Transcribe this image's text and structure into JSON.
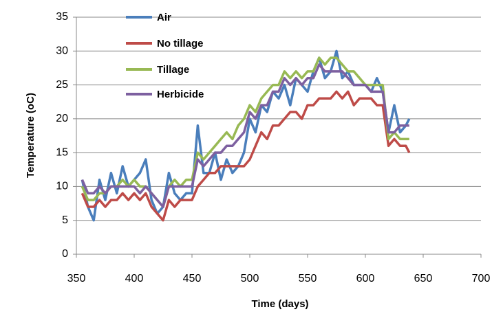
{
  "chart_data": {
    "type": "line",
    "x_label": "Time (days)",
    "y_label": "Temperature (oC)",
    "x": [
      355,
      360,
      365,
      370,
      375,
      380,
      385,
      390,
      395,
      400,
      405,
      410,
      415,
      420,
      425,
      430,
      435,
      440,
      445,
      450,
      455,
      460,
      465,
      470,
      475,
      480,
      485,
      490,
      495,
      500,
      505,
      510,
      515,
      520,
      525,
      530,
      535,
      540,
      545,
      550,
      555,
      560,
      565,
      570,
      575,
      580,
      585,
      590,
      595,
      600,
      605,
      610,
      615,
      620,
      625,
      630,
      635,
      638
    ],
    "series": [
      {
        "name": "Air",
        "color": "#4a7ebb",
        "values": [
          11,
          7,
          5,
          11,
          8,
          12,
          9,
          13,
          10,
          11,
          12,
          14,
          8,
          6,
          7,
          12,
          9,
          8,
          9,
          9,
          19,
          12,
          12,
          15,
          11,
          14,
          12,
          13,
          15,
          20,
          18,
          22,
          21,
          24,
          23,
          25,
          22,
          26,
          25,
          24,
          27,
          29,
          26,
          27,
          30,
          26,
          27,
          25,
          25,
          25,
          24,
          26,
          24,
          18,
          22,
          18,
          19,
          20
        ]
      },
      {
        "name": "No tillage",
        "color": "#be4b48",
        "values": [
          9,
          7,
          7,
          8,
          7,
          8,
          8,
          9,
          8,
          9,
          8,
          9,
          7,
          6,
          5,
          8,
          7,
          8,
          8,
          8,
          10,
          11,
          12,
          12,
          13,
          13,
          13,
          13,
          13,
          14,
          16,
          18,
          17,
          19,
          19,
          20,
          21,
          21,
          20,
          22,
          22,
          23,
          23,
          23,
          24,
          23,
          24,
          22,
          23,
          23,
          23,
          22,
          22,
          16,
          17,
          16,
          16,
          15
        ]
      },
      {
        "name": "Tillage",
        "color": "#98b954",
        "values": [
          10,
          8,
          8,
          9,
          9,
          10,
          10,
          11,
          10,
          11,
          10,
          10,
          9,
          8,
          7,
          10,
          11,
          10,
          11,
          11,
          15,
          14,
          15,
          16,
          17,
          18,
          17,
          19,
          20,
          22,
          21,
          23,
          24,
          25,
          25,
          27,
          26,
          27,
          26,
          27,
          27,
          29,
          28,
          29,
          29,
          28,
          27,
          27,
          26,
          25,
          25,
          25,
          25,
          17,
          18,
          17,
          17,
          17
        ]
      },
      {
        "name": "Herbicide",
        "color": "#7d60a0",
        "values": [
          11,
          9,
          9,
          10,
          9,
          10,
          10,
          10,
          10,
          10,
          9,
          10,
          9,
          8,
          7,
          10,
          10,
          10,
          10,
          10,
          14,
          13,
          14,
          15,
          15,
          16,
          16,
          17,
          18,
          21,
          20,
          22,
          22,
          24,
          24,
          26,
          25,
          26,
          25,
          26,
          26,
          28,
          27,
          27,
          27,
          27,
          26,
          25,
          25,
          25,
          24,
          24,
          24,
          18,
          18,
          19,
          19,
          19
        ]
      }
    ],
    "xlim": [
      350,
      700
    ],
    "xticks": [
      350,
      400,
      450,
      500,
      550,
      600,
      650,
      700
    ],
    "ylim": [
      0,
      35
    ],
    "yticks": [
      0,
      5,
      10,
      15,
      20,
      25,
      30,
      35
    ],
    "grid": true,
    "legend": "top-left"
  }
}
